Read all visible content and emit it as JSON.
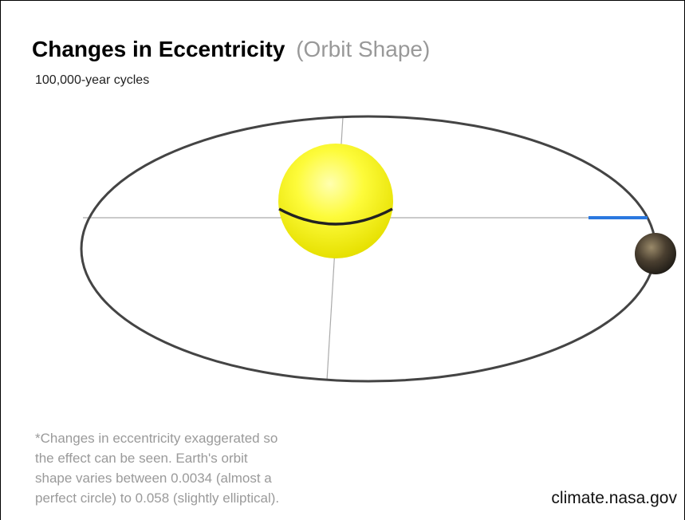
{
  "header": {
    "title": "Changes in Eccentricity",
    "title_note": "(Orbit Shape)",
    "subtitle": "100,000-year cycles"
  },
  "footnote": {
    "lines": [
      "*Changes in eccentricity exaggerated so",
      "the effect can be seen. Earth's orbit",
      "shape varies between 0.0034 (almost a",
      "perfect circle) to 0.058 (slightly elliptical)."
    ]
  },
  "credit": "climate.nasa.gov"
}
